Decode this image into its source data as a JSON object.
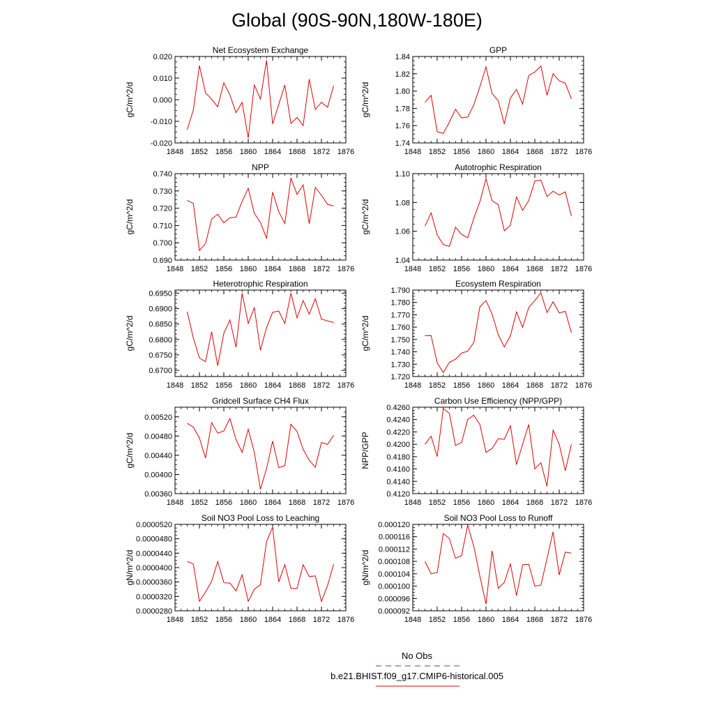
{
  "title": "Global (90S-90N,180W-180E)",
  "legend": {
    "obs_label": "No Obs",
    "obs_color": "#4040c0",
    "model_label": "b.e21.BHIST.f09_g17.CMIP6-historical.005",
    "model_color": "#e00000"
  },
  "chart_data": [
    {
      "type": "line",
      "title": "Net Ecosystem Exchange",
      "ylabel": "gC/m^2/d",
      "xlim": [
        1848,
        1876
      ],
      "xticks": [
        "1848",
        "1852",
        "1856",
        "1860",
        "1864",
        "1868",
        "1872",
        "1876"
      ],
      "ylim": [
        -0.02,
        0.02
      ],
      "yticks": [
        "-0.020",
        "-0.010",
        "0.000",
        "0.010",
        "0.020"
      ],
      "x": [
        1850,
        1851,
        1852,
        1853,
        1854,
        1855,
        1856,
        1857,
        1858,
        1859,
        1860,
        1861,
        1862,
        1863,
        1864,
        1865,
        1866,
        1867,
        1868,
        1869,
        1870,
        1871,
        1872,
        1873,
        1874
      ],
      "series": [
        {
          "name": "b.e21.BHIST.f09_g17.CMIP6-historical.005",
          "values": [
            -0.0138,
            -0.0048,
            0.0158,
            0.0032,
            0.0003,
            -0.0033,
            0.0078,
            0.0022,
            -0.006,
            -0.0012,
            -0.0177,
            0.0068,
            0.0003,
            0.0182,
            -0.0112,
            -0.0022,
            0.0068,
            -0.011,
            -0.0082,
            -0.012,
            0.0095,
            -0.0045,
            -0.0012,
            -0.0035,
            0.0065
          ]
        }
      ]
    },
    {
      "type": "line",
      "title": "GPP",
      "ylabel": "gC/m^2/d",
      "xlim": [
        1848,
        1876
      ],
      "xticks": [
        "1848",
        "1852",
        "1856",
        "1860",
        "1864",
        "1868",
        "1872",
        "1876"
      ],
      "ylim": [
        1.74,
        1.84
      ],
      "yticks": [
        "1.74",
        "1.76",
        "1.78",
        "1.80",
        "1.82",
        "1.84"
      ],
      "x": [
        1850,
        1851,
        1852,
        1853,
        1854,
        1855,
        1856,
        1857,
        1858,
        1859,
        1860,
        1861,
        1862,
        1863,
        1864,
        1865,
        1866,
        1867,
        1868,
        1869,
        1870,
        1871,
        1872,
        1873,
        1874
      ],
      "series": [
        {
          "name": "b.e21.BHIST.f09_g17.CMIP6-historical.005",
          "values": [
            1.787,
            1.795,
            1.753,
            1.751,
            1.764,
            1.779,
            1.769,
            1.77,
            1.784,
            1.805,
            1.828,
            1.797,
            1.789,
            1.762,
            1.792,
            1.802,
            1.785,
            1.818,
            1.822,
            1.829,
            1.795,
            1.82,
            1.812,
            1.809,
            1.791
          ]
        }
      ]
    },
    {
      "type": "line",
      "title": "NPP",
      "ylabel": "gC/m^2/d",
      "xlim": [
        1848,
        1876
      ],
      "xticks": [
        "1848",
        "1852",
        "1856",
        "1860",
        "1864",
        "1868",
        "1872",
        "1876"
      ],
      "ylim": [
        0.69,
        0.74
      ],
      "yticks": [
        "0.690",
        "0.700",
        "0.710",
        "0.720",
        "0.730",
        "0.740"
      ],
      "x": [
        1850,
        1851,
        1852,
        1853,
        1854,
        1855,
        1856,
        1857,
        1858,
        1859,
        1860,
        1861,
        1862,
        1863,
        1864,
        1865,
        1866,
        1867,
        1868,
        1869,
        1870,
        1871,
        1872,
        1873,
        1874
      ],
      "series": [
        {
          "name": "b.e21.BHIST.f09_g17.CMIP6-historical.005",
          "values": [
            0.7245,
            0.7228,
            0.6955,
            0.6995,
            0.7138,
            0.7165,
            0.7115,
            0.7145,
            0.7148,
            0.724,
            0.7315,
            0.717,
            0.7118,
            0.7025,
            0.7293,
            0.718,
            0.7112,
            0.7375,
            0.728,
            0.7335,
            0.711,
            0.732,
            0.7275,
            0.7222,
            0.7213
          ]
        }
      ]
    },
    {
      "type": "line",
      "title": "Autotrophic Respiration",
      "ylabel": "gC/m^2/d",
      "xlim": [
        1848,
        1876
      ],
      "xticks": [
        "1848",
        "1852",
        "1856",
        "1860",
        "1864",
        "1868",
        "1872",
        "1876"
      ],
      "ylim": [
        1.04,
        1.1
      ],
      "yticks": [
        "1.04",
        "1.06",
        "1.08",
        "1.10"
      ],
      "x": [
        1850,
        1851,
        1852,
        1853,
        1854,
        1855,
        1856,
        1857,
        1858,
        1859,
        1860,
        1861,
        1862,
        1863,
        1864,
        1865,
        1866,
        1867,
        1868,
        1869,
        1870,
        1871,
        1872,
        1873,
        1874
      ],
      "series": [
        {
          "name": "b.e21.BHIST.f09_g17.CMIP6-historical.005",
          "values": [
            1.0635,
            1.0728,
            1.0575,
            1.0508,
            1.0495,
            1.0628,
            1.0578,
            1.0555,
            1.069,
            1.0805,
            1.0965,
            1.0812,
            1.0785,
            1.0603,
            1.0642,
            1.0838,
            1.0745,
            1.0812,
            1.0948,
            1.0955,
            1.084,
            1.0878,
            1.0852,
            1.0873,
            1.0705
          ]
        }
      ]
    },
    {
      "type": "line",
      "title": "Heterotrophic Respiration",
      "ylabel": "gC/m^2/d",
      "xlim": [
        1848,
        1876
      ],
      "xticks": [
        "1848",
        "1852",
        "1856",
        "1860",
        "1864",
        "1868",
        "1872",
        "1876"
      ],
      "ylim": [
        0.668,
        0.696
      ],
      "yticks": [
        "0.6700",
        "0.6750",
        "0.6800",
        "0.6850",
        "0.6900",
        "0.6950"
      ],
      "x": [
        1850,
        1851,
        1852,
        1853,
        1854,
        1855,
        1856,
        1857,
        1858,
        1859,
        1860,
        1861,
        1862,
        1863,
        1864,
        1865,
        1866,
        1867,
        1868,
        1869,
        1870,
        1871,
        1872,
        1873,
        1874
      ],
      "series": [
        {
          "name": "b.e21.BHIST.f09_g17.CMIP6-historical.005",
          "values": [
            0.689,
            0.6805,
            0.674,
            0.6728,
            0.6825,
            0.6715,
            0.682,
            0.6863,
            0.6775,
            0.695,
            0.6852,
            0.6903,
            0.6765,
            0.6838,
            0.6888,
            0.6892,
            0.6852,
            0.695,
            0.687,
            0.6926,
            0.6882,
            0.6932,
            0.6866,
            0.686,
            0.6855
          ]
        }
      ]
    },
    {
      "type": "line",
      "title": "Ecosystem Respiration",
      "ylabel": "gC/m^2/d",
      "xlim": [
        1848,
        1876
      ],
      "xticks": [
        "1848",
        "1852",
        "1856",
        "1860",
        "1864",
        "1868",
        "1872",
        "1876"
      ],
      "ylim": [
        1.72,
        1.79
      ],
      "yticks": [
        "1.720",
        "1.730",
        "1.740",
        "1.750",
        "1.760",
        "1.770",
        "1.780",
        "1.790"
      ],
      "x": [
        1850,
        1851,
        1852,
        1853,
        1854,
        1855,
        1856,
        1857,
        1858,
        1859,
        1860,
        1861,
        1862,
        1863,
        1864,
        1865,
        1866,
        1867,
        1868,
        1869,
        1870,
        1871,
        1872,
        1873,
        1874
      ],
      "series": [
        {
          "name": "b.e21.BHIST.f09_g17.CMIP6-historical.005",
          "values": [
            1.753,
            1.7532,
            1.731,
            1.7232,
            1.7315,
            1.734,
            1.739,
            1.7405,
            1.7475,
            1.7765,
            1.7815,
            1.7705,
            1.754,
            1.744,
            1.753,
            1.7722,
            1.7598,
            1.7758,
            1.7815,
            1.7878,
            1.7718,
            1.7805,
            1.7715,
            1.7728,
            1.7555
          ]
        }
      ]
    },
    {
      "type": "line",
      "title": "Gridcell Surface CH4 Flux",
      "ylabel": "gC/m^2/d",
      "xlim": [
        1848,
        1876
      ],
      "xticks": [
        "1848",
        "1852",
        "1856",
        "1860",
        "1864",
        "1868",
        "1872",
        "1876"
      ],
      "ylim": [
        0.0036,
        0.0054
      ],
      "yticks": [
        "0.00360",
        "0.00400",
        "0.00440",
        "0.00480",
        "0.00520"
      ],
      "x": [
        1850,
        1851,
        1852,
        1853,
        1854,
        1855,
        1856,
        1857,
        1858,
        1859,
        1860,
        1861,
        1862,
        1863,
        1864,
        1865,
        1866,
        1867,
        1868,
        1869,
        1870,
        1871,
        1872,
        1873,
        1874
      ],
      "series": [
        {
          "name": "b.e21.BHIST.f09_g17.CMIP6-historical.005",
          "values": [
            0.005065,
            0.004985,
            0.00476,
            0.00434,
            0.00508,
            0.00486,
            0.004905,
            0.005165,
            0.004725,
            0.00446,
            0.00494,
            0.00446,
            0.00369,
            0.00412,
            0.004695,
            0.00414,
            0.004185,
            0.005045,
            0.004895,
            0.004525,
            0.004295,
            0.00415,
            0.004665,
            0.004625,
            0.004815
          ]
        }
      ]
    },
    {
      "type": "line",
      "title": "Carbon Use Efficiency (NPP/GPP)",
      "ylabel": "NPP/GPP",
      "xlim": [
        1848,
        1876
      ],
      "xticks": [
        "1848",
        "1852",
        "1856",
        "1860",
        "1864",
        "1868",
        "1872",
        "1876"
      ],
      "ylim": [
        0.412,
        0.426
      ],
      "yticks": [
        "0.4120",
        "0.4140",
        "0.4160",
        "0.4180",
        "0.4200",
        "0.4220",
        "0.4240",
        "0.4260"
      ],
      "x": [
        1850,
        1851,
        1852,
        1853,
        1854,
        1855,
        1856,
        1857,
        1858,
        1859,
        1860,
        1861,
        1862,
        1863,
        1864,
        1865,
        1866,
        1867,
        1868,
        1869,
        1870,
        1871,
        1872,
        1873,
        1874
      ],
      "series": [
        {
          "name": "b.e21.BHIST.f09_g17.CMIP6-historical.005",
          "values": [
            0.42,
            0.4213,
            0.418,
            0.4258,
            0.425,
            0.4198,
            0.4203,
            0.424,
            0.4247,
            0.4232,
            0.4187,
            0.4193,
            0.4209,
            0.4208,
            0.423,
            0.4167,
            0.42,
            0.4232,
            0.416,
            0.417,
            0.4132,
            0.4223,
            0.42,
            0.4157,
            0.42
          ]
        }
      ]
    },
    {
      "type": "line",
      "title": "Soil NO3 Pool Loss to Leaching",
      "ylabel": "gN/m^2/d",
      "xlim": [
        1848,
        1876
      ],
      "xticks": [
        "1848",
        "1852",
        "1856",
        "1860",
        "1864",
        "1868",
        "1872",
        "1876"
      ],
      "ylim": [
        2.8e-05,
        5.2e-05
      ],
      "yticks": [
        "0.0000280",
        "0.0000320",
        "0.0000360",
        "0.0000400",
        "0.0000440",
        "0.0000480",
        "0.0000520"
      ],
      "x": [
        1850,
        1851,
        1852,
        1853,
        1854,
        1855,
        1856,
        1857,
        1858,
        1859,
        1860,
        1861,
        1862,
        1863,
        1864,
        1865,
        1866,
        1867,
        1868,
        1869,
        1870,
        1871,
        1872,
        1873,
        1874
      ],
      "series": [
        {
          "name": "b.e21.BHIST.f09_g17.CMIP6-historical.005",
          "values": [
            4.17e-05,
            4.1e-05,
            3.06e-05,
            3.32e-05,
            3.62e-05,
            4.17e-05,
            3.58e-05,
            3.57e-05,
            3.35e-05,
            3.8e-05,
            3.06e-05,
            3.4e-05,
            3.52e-05,
            4.72e-05,
            5.12e-05,
            3.6e-05,
            4.08e-05,
            3.42e-05,
            3.42e-05,
            4.08e-05,
            3.75e-05,
            3.77e-05,
            3.06e-05,
            3.5e-05,
            4.1e-05
          ]
        }
      ]
    },
    {
      "type": "line",
      "title": "Soil NO3 Pool Loss to Runoff",
      "ylabel": "gN/m^2/d",
      "xlim": [
        1848,
        1876
      ],
      "xticks": [
        "1848",
        "1852",
        "1856",
        "1860",
        "1864",
        "1868",
        "1872",
        "1876"
      ],
      "ylim": [
        9.2e-05,
        0.00012
      ],
      "yticks": [
        "0.000092",
        "0.000096",
        "0.000100",
        "0.000104",
        "0.000108",
        "0.000112",
        "0.000116",
        "0.000120"
      ],
      "x": [
        1850,
        1851,
        1852,
        1853,
        1854,
        1855,
        1856,
        1857,
        1858,
        1859,
        1860,
        1861,
        1862,
        1863,
        1864,
        1865,
        1866,
        1867,
        1868,
        1869,
        1870,
        1871,
        1872,
        1873,
        1874
      ],
      "series": [
        {
          "name": "b.e21.BHIST.f09_g17.CMIP6-historical.005",
          "values": [
            0.000108,
            0.000104,
            0.0001044,
            0.000117,
            0.0001154,
            0.000109,
            0.0001099,
            0.0001198,
            0.0001129,
            0.0001032,
            9.42e-05,
            0.0001114,
            9.93e-05,
            0.0001012,
            0.0001072,
            9.69e-05,
            0.0001069,
            0.0001071,
            0.0001,
            0.0001003,
            0.0001089,
            0.0001176,
            0.0001036,
            0.000111,
            0.0001107
          ]
        }
      ]
    }
  ]
}
